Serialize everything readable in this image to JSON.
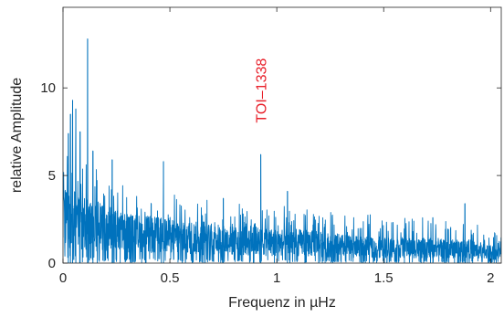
{
  "chart_data": {
    "type": "line",
    "title": "",
    "xlabel": "Frequenz in µHz",
    "ylabel": "relative Amplitude",
    "xlim": [
      0,
      2.05
    ],
    "ylim": [
      0,
      14.6
    ],
    "xticks": [
      0,
      0.5,
      1,
      1.5,
      2
    ],
    "xtick_labels": [
      "0",
      "0.5",
      "1",
      "1.5",
      "2"
    ],
    "yticks": [
      0,
      5,
      10
    ],
    "ytick_labels": [
      "0",
      "5",
      "10"
    ],
    "grid": false,
    "box": true,
    "series": [
      {
        "color": "#0072BD",
        "envelope": {
          "x": [
            0,
            0.02,
            0.05,
            0.08,
            0.1,
            0.15,
            0.2,
            0.3,
            0.4,
            0.5,
            0.6,
            0.7,
            0.8,
            0.9,
            1.0,
            1.1,
            1.2,
            1.3,
            1.4,
            1.5,
            1.6,
            1.7,
            1.8,
            1.9,
            2.0,
            2.05
          ],
          "mean": [
            2.7,
            3.0,
            2.8,
            2.6,
            2.5,
            2.3,
            2.2,
            1.9,
            1.8,
            1.7,
            1.6,
            1.5,
            1.4,
            1.4,
            1.3,
            1.3,
            1.2,
            1.1,
            1.0,
            1.0,
            0.95,
            0.95,
            0.9,
            0.9,
            0.7,
            0.6
          ],
          "max": [
            5.0,
            6.5,
            6.0,
            6.2,
            6.0,
            5.5,
            5.0,
            4.5,
            4.2,
            4.0,
            3.8,
            3.6,
            3.4,
            3.4,
            3.3,
            3.2,
            3.0,
            2.9,
            2.8,
            2.7,
            2.6,
            2.6,
            2.5,
            2.5,
            2.0,
            1.6
          ]
        },
        "peaks": [
          {
            "x": 0.115,
            "y": 12.8
          },
          {
            "x": 0.045,
            "y": 9.3
          },
          {
            "x": 0.06,
            "y": 8.8
          },
          {
            "x": 0.035,
            "y": 8.5
          },
          {
            "x": 0.08,
            "y": 7.5
          },
          {
            "x": 0.025,
            "y": 7.4
          },
          {
            "x": 0.14,
            "y": 6.4
          },
          {
            "x": 0.925,
            "y": 6.2
          },
          {
            "x": 0.47,
            "y": 5.8
          },
          {
            "x": 0.23,
            "y": 5.9
          },
          {
            "x": 1.05,
            "y": 4.1
          },
          {
            "x": 0.75,
            "y": 3.7
          },
          {
            "x": 1.88,
            "y": 3.4
          },
          {
            "x": 1.73,
            "y": 2.6
          }
        ]
      }
    ],
    "annotations": [
      {
        "text": "TOI–1338",
        "x": 0.925,
        "y": 8.0,
        "color": "#E8202A",
        "rotation": -90
      }
    ]
  }
}
